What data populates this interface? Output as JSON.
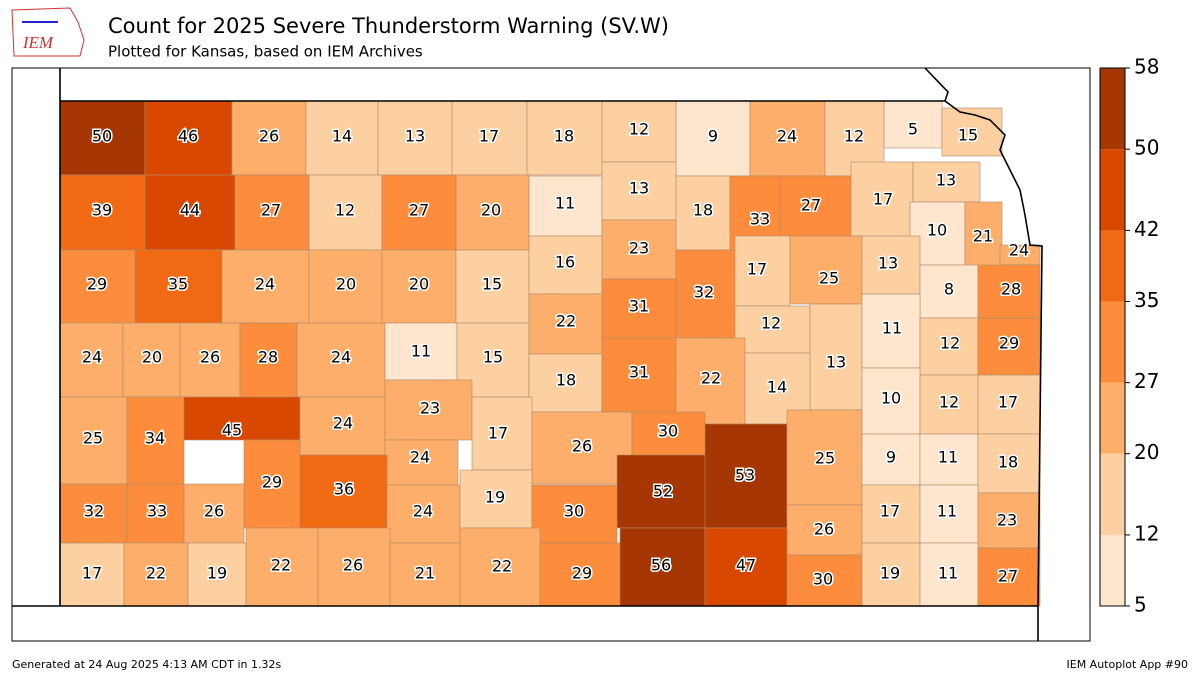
{
  "header": {
    "logo": "IEM",
    "title": "Count for 2025 Severe Thunderstorm Warning (SV.W)",
    "subtitle": "Plotted for Kansas, based on IEM Archives"
  },
  "chart_data": {
    "type": "choropleth",
    "values": [
      50,
      46,
      26,
      14,
      13,
      17,
      18,
      12,
      9,
      24,
      12,
      5,
      15,
      39,
      44,
      27,
      12,
      27,
      20,
      11,
      13,
      18,
      33,
      27,
      17,
      13,
      10,
      21,
      24,
      29,
      35,
      24,
      20,
      20,
      15,
      16,
      23,
      32,
      17,
      25,
      13,
      8,
      28,
      24,
      20,
      26,
      28,
      24,
      11,
      15,
      22,
      31,
      12,
      13,
      11,
      12,
      29,
      18,
      31,
      22,
      14,
      10,
      12,
      17,
      25,
      34,
      45,
      24,
      23,
      17,
      26,
      30,
      24,
      29,
      36,
      53,
      52,
      25,
      9,
      11,
      18,
      32,
      33,
      26,
      24,
      19,
      30,
      26,
      17,
      11,
      23,
      17,
      22,
      19,
      22,
      26,
      21,
      22,
      29,
      56,
      47,
      30,
      19,
      11,
      27
    ],
    "colorbar": {
      "bins": [
        5,
        12,
        20,
        27,
        35,
        42,
        50,
        58
      ],
      "colors": [
        "#fee6ce",
        "#fdd0a2",
        "#fdae6b",
        "#fd8d3c",
        "#f16913",
        "#d94801",
        "#a63603"
      ]
    }
  },
  "footer": {
    "left": "Generated at 24 Aug 2025 4:13 AM CDT in 1.32s",
    "right": "IEM Autoplot App #90"
  }
}
